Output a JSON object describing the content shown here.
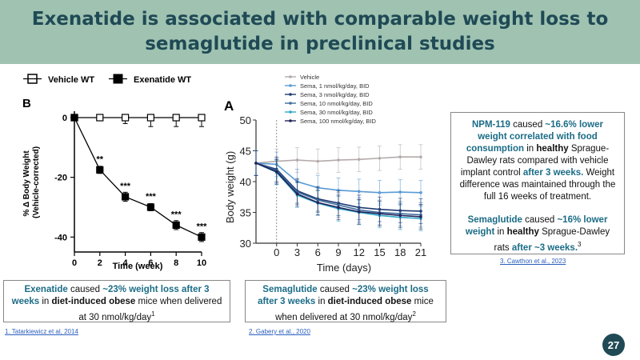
{
  "title": "Exenatide is associated with comparable weight loss to semaglutide in preclinical studies",
  "page_number": "27",
  "chart_data": [
    {
      "type": "line",
      "panel_label": "B",
      "legend": [
        "Vehicle WT",
        "Exenatide WT"
      ],
      "xlabel": "Time (week)",
      "ylabel": "% Δ Body Weight\n(Vehicle-corrected)",
      "x_ticks": [
        "0",
        "2",
        "4",
        "6",
        "8",
        "10"
      ],
      "y_ticks": [
        "0",
        "-20",
        "-40"
      ],
      "xlim": [
        0,
        10
      ],
      "ylim": [
        -45,
        0
      ],
      "series": [
        {
          "name": "Vehicle WT",
          "x": [
            0,
            2,
            4,
            6,
            8,
            10
          ],
          "values": [
            0,
            0,
            0,
            0,
            0,
            0
          ],
          "err": [
            0,
            1,
            2,
            3,
            3,
            3
          ]
        },
        {
          "name": "Exenatide WT",
          "x": [
            0,
            2,
            4,
            6,
            8,
            10
          ],
          "values": [
            0,
            -17.5,
            -26.5,
            -30,
            -36,
            -40
          ],
          "err": [
            0,
            1.2,
            1.5,
            1.2,
            1.5,
            1.5
          ]
        }
      ],
      "annotations": [
        {
          "x": 2,
          "text": "**"
        },
        {
          "x": 4,
          "text": "***"
        },
        {
          "x": 6,
          "text": "***"
        },
        {
          "x": 8,
          "text": "***"
        },
        {
          "x": 10,
          "text": "***"
        }
      ]
    },
    {
      "type": "line",
      "panel_label": "A",
      "xlabel": "Time (days)",
      "ylabel": "Body weight (g)",
      "x_ticks": [
        "0",
        "3",
        "6",
        "9",
        "12",
        "15",
        "18",
        "21"
      ],
      "y_ticks": [
        "30",
        "35",
        "40",
        "45",
        "50"
      ],
      "xlim": [
        -3,
        21
      ],
      "ylim": [
        30,
        50
      ],
      "series": [
        {
          "name": "Vehicle",
          "color": "#b4aaaa",
          "x": [
            -3,
            0,
            3,
            6,
            9,
            12,
            15,
            18,
            21
          ],
          "values": [
            43,
            43.3,
            43.5,
            43.3,
            43.5,
            43.6,
            43.8,
            44,
            44
          ]
        },
        {
          "name": "Sema, 1 nmol/kg/day, BID",
          "color": "#5a9bd5",
          "x": [
            -3,
            0,
            3,
            6,
            9,
            12,
            15,
            18,
            21
          ],
          "values": [
            43,
            42.8,
            40,
            39,
            38.6,
            38.4,
            38.2,
            38.3,
            38.2
          ]
        },
        {
          "name": "Sema, 3 nmol/kg/day, BID",
          "color": "#1f3a70",
          "x": [
            -3,
            0,
            3,
            6,
            9,
            12,
            15,
            18,
            21
          ],
          "values": [
            43,
            42,
            38.5,
            37.2,
            36.5,
            35.8,
            35.5,
            35.3,
            35.2
          ]
        },
        {
          "name": "Sema, 10 nmol/kg/day, BID",
          "color": "#3d6e9e",
          "x": [
            -3,
            0,
            3,
            6,
            9,
            12,
            15,
            18,
            21
          ],
          "values": [
            43,
            41.8,
            38.3,
            37,
            36.2,
            35.4,
            35,
            34.8,
            34.6
          ]
        },
        {
          "name": "Sema, 30 nmol/kg/day, BID",
          "color": "#2fa8c8",
          "x": [
            -3,
            0,
            3,
            6,
            9,
            12,
            15,
            18,
            21
          ],
          "values": [
            43,
            41.5,
            37.8,
            36.5,
            35.6,
            35,
            34.5,
            34.2,
            34
          ]
        },
        {
          "name": "Sema, 100 nmol/kg/day, BID",
          "color": "#23235a",
          "x": [
            -3,
            0,
            3,
            6,
            9,
            12,
            15,
            18,
            21
          ],
          "values": [
            43,
            41.6,
            38,
            36.6,
            35.8,
            35.1,
            34.8,
            34.5,
            34.3
          ]
        }
      ]
    }
  ],
  "caption_left": {
    "drug": "Exenatide",
    "t1": " caused ",
    "effect": "~23% weight loss after 3 weeks",
    "t2": " in ",
    "model": "diet-induced obese",
    "t3": " mice when delivered at 30 nmol/kg/day",
    "sup": "1"
  },
  "caption_middle": {
    "drug": "Semaglutide",
    "t1": " caused ",
    "effect": "~23% weight loss after 3 weeks",
    "t2": " in ",
    "model": "diet-induced obese",
    "t3": " mice when delivered at 30 nmol/kg/day",
    "sup": "2"
  },
  "info_box": {
    "p1_drug": "NPM-119",
    "p1_t1": " caused ",
    "p1_effect": "~16.6% lower weight correlated with food consumption",
    "p1_t2": " in ",
    "p1_healthy": "healthy",
    "p1_t3": " Sprague-Dawley rats compared with vehicle implant control ",
    "p1_time": "after 3 weeks.",
    "p1_t4": "  Weight difference was maintained through the full 16 weeks of treatment.",
    "p2_drug": "Semaglutide",
    "p2_t1": " caused ",
    "p2_effect": "~16% lower weight",
    "p2_t2": " in ",
    "p2_healthy": "healthy",
    "p2_t3": " Sprague-Dawley rats ",
    "p2_time": "after ~3 weeks.",
    "p2_sup": "3"
  },
  "citations": {
    "c1": "1. Tatarkiewicz et al, 2014",
    "c2": "2. Gabery et al., 2020",
    "c3": "3. Cawthon et al., 2023"
  }
}
